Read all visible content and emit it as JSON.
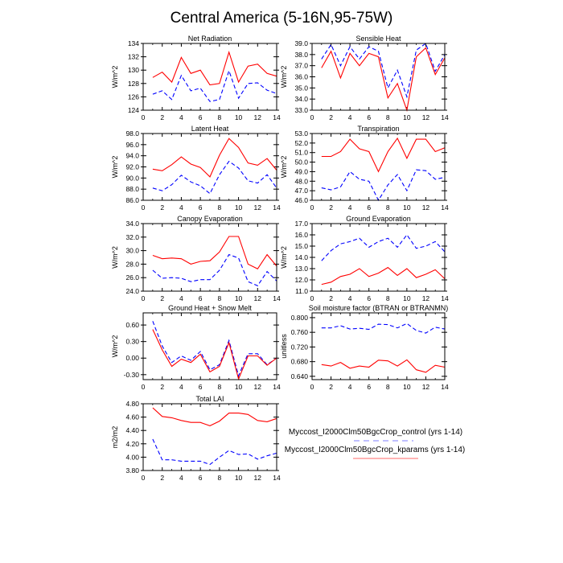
{
  "title": "Central America (5-16N,95-75W)",
  "legend": {
    "entries": [
      {
        "label": "Myccost_I2000Clm50BgcCrop_control (yrs 1-14)",
        "color": "#0000ff",
        "style": "dashed"
      },
      {
        "label": "Myccost_I2000Clm50BgcCrop_kparams (yrs 1-14)",
        "color": "#ff0000",
        "style": "solid"
      }
    ]
  },
  "chart_data": [
    {
      "type": "line",
      "title": "Net Radiation",
      "ylabel": "W/m^2",
      "xlim": [
        0,
        14
      ],
      "ylim": [
        124,
        134
      ],
      "yticks": [
        "124",
        "126",
        "128",
        "130",
        "132",
        "134"
      ],
      "x": [
        1,
        2,
        3,
        4,
        5,
        6,
        7,
        8,
        9,
        10,
        11,
        12,
        13,
        14
      ],
      "series": [
        {
          "name": "control",
          "values": [
            126.4,
            126.9,
            125.6,
            129.2,
            126.9,
            127.3,
            125.3,
            125.6,
            129.9,
            125.8,
            128.0,
            128.1,
            127.0,
            126.5
          ]
        },
        {
          "name": "kparams",
          "values": [
            128.9,
            129.7,
            128.2,
            131.9,
            129.5,
            130.0,
            127.8,
            128.0,
            132.7,
            128.2,
            130.6,
            130.9,
            129.5,
            129.1
          ]
        }
      ]
    },
    {
      "type": "line",
      "title": "Sensible Heat",
      "ylabel": "W/m^2",
      "xlim": [
        0,
        14
      ],
      "ylim": [
        33,
        39
      ],
      "yticks": [
        "33.0",
        "34.0",
        "35.0",
        "36.0",
        "37.0",
        "38.0",
        "39.0"
      ],
      "x": [
        1,
        2,
        3,
        4,
        5,
        6,
        7,
        8,
        9,
        10,
        11,
        12,
        13,
        14
      ],
      "series": [
        {
          "name": "control",
          "values": [
            37.6,
            38.9,
            37.0,
            38.7,
            37.6,
            38.7,
            38.3,
            35.0,
            36.6,
            34.2,
            38.4,
            39.0,
            36.5,
            38.0
          ]
        },
        {
          "name": "kparams",
          "values": [
            36.8,
            38.3,
            35.9,
            38.1,
            37.0,
            38.1,
            37.8,
            34.1,
            35.4,
            33.0,
            37.8,
            38.6,
            36.2,
            37.7
          ]
        }
      ]
    },
    {
      "type": "line",
      "title": "Latent Heat",
      "ylabel": "W/m^2",
      "xlim": [
        0,
        14
      ],
      "ylim": [
        86,
        98
      ],
      "yticks": [
        "86.0",
        "88.0",
        "90.0",
        "92.0",
        "94.0",
        "96.0",
        "98.0"
      ],
      "x": [
        1,
        2,
        3,
        4,
        5,
        6,
        7,
        8,
        9,
        10,
        11,
        12,
        13,
        14
      ],
      "series": [
        {
          "name": "control",
          "values": [
            88.2,
            87.7,
            88.8,
            90.5,
            89.3,
            88.6,
            87.2,
            90.6,
            93.0,
            91.8,
            89.5,
            89.1,
            90.6,
            88.2
          ]
        },
        {
          "name": "kparams",
          "values": [
            91.6,
            91.3,
            92.4,
            93.8,
            92.5,
            91.9,
            90.2,
            94.1,
            97.1,
            95.5,
            92.7,
            92.3,
            93.5,
            91.4
          ]
        }
      ]
    },
    {
      "type": "line",
      "title": "Transpiration",
      "ylabel": "W/m^2",
      "xlim": [
        0,
        14
      ],
      "ylim": [
        46,
        53
      ],
      "yticks": [
        "46.0",
        "47.0",
        "48.0",
        "49.0",
        "50.0",
        "51.0",
        "52.0",
        "53.0"
      ],
      "x": [
        1,
        2,
        3,
        4,
        5,
        6,
        7,
        8,
        9,
        10,
        11,
        12,
        13,
        14
      ],
      "series": [
        {
          "name": "control",
          "values": [
            47.3,
            47.1,
            47.4,
            49.0,
            48.2,
            48.0,
            46.0,
            47.6,
            48.7,
            47.0,
            49.2,
            49.1,
            48.2,
            48.4
          ]
        },
        {
          "name": "kparams",
          "values": [
            50.6,
            50.6,
            51.1,
            52.4,
            51.4,
            51.1,
            49.0,
            51.1,
            52.5,
            50.4,
            52.4,
            52.4,
            51.1,
            51.5
          ]
        }
      ]
    },
    {
      "type": "line",
      "title": "Canopy Evaporation",
      "ylabel": "W/m^2",
      "xlim": [
        0,
        14
      ],
      "ylim": [
        24,
        34
      ],
      "yticks": [
        "24.0",
        "26.0",
        "28.0",
        "30.0",
        "32.0",
        "34.0"
      ],
      "x": [
        1,
        2,
        3,
        4,
        5,
        6,
        7,
        8,
        9,
        10,
        11,
        12,
        13,
        14
      ],
      "series": [
        {
          "name": "control",
          "values": [
            27.1,
            25.9,
            26.0,
            25.9,
            25.4,
            25.7,
            25.7,
            27.1,
            29.4,
            28.9,
            25.4,
            24.8,
            26.9,
            25.5
          ]
        },
        {
          "name": "kparams",
          "values": [
            29.3,
            28.8,
            28.9,
            28.8,
            28.0,
            28.4,
            28.5,
            29.8,
            32.1,
            32.1,
            28.0,
            27.3,
            29.4,
            27.7
          ]
        }
      ]
    },
    {
      "type": "line",
      "title": "Ground Evaporation",
      "ylabel": "W/m^2",
      "xlim": [
        0,
        14
      ],
      "ylim": [
        11,
        17
      ],
      "yticks": [
        "11.0",
        "12.0",
        "13.0",
        "14.0",
        "15.0",
        "16.0",
        "17.0"
      ],
      "x": [
        1,
        2,
        3,
        4,
        5,
        6,
        7,
        8,
        9,
        10,
        11,
        12,
        13,
        14
      ],
      "series": [
        {
          "name": "control",
          "values": [
            13.7,
            14.6,
            15.2,
            15.4,
            15.7,
            14.9,
            15.4,
            15.7,
            14.9,
            16.0,
            14.8,
            15.0,
            15.4,
            14.5
          ]
        },
        {
          "name": "kparams",
          "values": [
            11.6,
            11.8,
            12.3,
            12.5,
            13.0,
            12.3,
            12.6,
            13.1,
            12.4,
            13.0,
            12.2,
            12.5,
            12.9,
            12.1
          ]
        }
      ]
    },
    {
      "type": "line",
      "title": "Ground Heat + Snow Melt",
      "ylabel": "W/m^2",
      "xlim": [
        0,
        14
      ],
      "ylim": [
        -0.39,
        0.82
      ],
      "yticks": [
        "-0.30",
        "0.00",
        "0.30",
        "0.60"
      ],
      "x": [
        1,
        2,
        3,
        4,
        5,
        6,
        7,
        8,
        9,
        10,
        11,
        12,
        13,
        14
      ],
      "series": [
        {
          "name": "control",
          "values": [
            0.67,
            0.22,
            -0.08,
            0.04,
            -0.04,
            0.12,
            -0.21,
            -0.12,
            0.32,
            -0.32,
            0.08,
            0.08,
            -0.12,
            0.0
          ]
        },
        {
          "name": "kparams",
          "values": [
            0.52,
            0.15,
            -0.15,
            -0.02,
            -0.08,
            0.07,
            -0.25,
            -0.15,
            0.28,
            -0.38,
            0.04,
            0.04,
            -0.13,
            0.0
          ]
        }
      ]
    },
    {
      "type": "line",
      "title": "Soil moisture factor (BTRAN or BTRANMN)",
      "ylabel": "unitless",
      "xlim": [
        0,
        14
      ],
      "ylim": [
        0.631,
        0.813
      ],
      "yticks": [
        "0.640",
        "0.680",
        "0.720",
        "0.760",
        "0.800"
      ],
      "x": [
        1,
        2,
        3,
        4,
        5,
        6,
        7,
        8,
        9,
        10,
        11,
        12,
        13,
        14
      ],
      "series": [
        {
          "name": "control",
          "values": [
            0.772,
            0.772,
            0.778,
            0.769,
            0.771,
            0.768,
            0.782,
            0.781,
            0.772,
            0.784,
            0.765,
            0.758,
            0.774,
            0.769
          ]
        },
        {
          "name": "kparams",
          "values": [
            0.672,
            0.668,
            0.678,
            0.662,
            0.668,
            0.665,
            0.684,
            0.682,
            0.668,
            0.685,
            0.658,
            0.651,
            0.67,
            0.665
          ]
        }
      ]
    },
    {
      "type": "line",
      "title": "Total LAI",
      "ylabel": "m2/m2",
      "xlim": [
        0,
        14
      ],
      "ylim": [
        3.8,
        4.8
      ],
      "yticks": [
        "3.80",
        "4.00",
        "4.20",
        "4.40",
        "4.60",
        "4.80"
      ],
      "x": [
        1,
        2,
        3,
        4,
        5,
        6,
        7,
        8,
        9,
        10,
        11,
        12,
        13,
        14
      ],
      "series": [
        {
          "name": "control",
          "values": [
            4.27,
            3.96,
            3.96,
            3.94,
            3.94,
            3.94,
            3.89,
            4.0,
            4.1,
            4.04,
            4.05,
            3.97,
            4.02,
            4.06
          ]
        },
        {
          "name": "kparams",
          "values": [
            4.74,
            4.61,
            4.59,
            4.55,
            4.52,
            4.52,
            4.47,
            4.54,
            4.66,
            4.66,
            4.64,
            4.55,
            4.53,
            4.58
          ]
        }
      ]
    }
  ],
  "xticks": [
    "0",
    "2",
    "4",
    "6",
    "8",
    "10",
    "12",
    "14"
  ]
}
